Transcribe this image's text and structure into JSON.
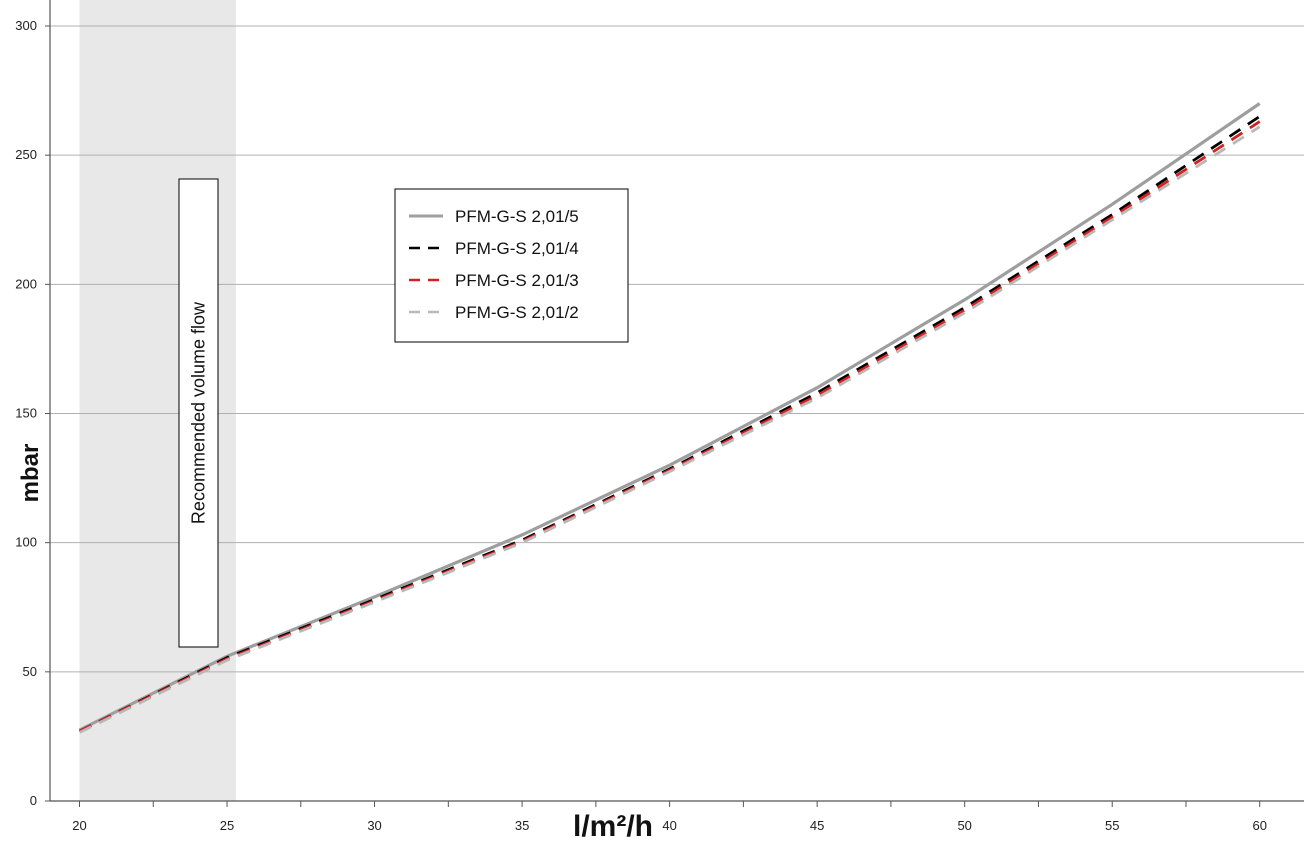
{
  "chart_data": {
    "type": "line",
    "xlabel": "l/m²/h",
    "ylabel": "mbar",
    "xlim": [
      19,
      61.5
    ],
    "ylim": [
      0,
      300
    ],
    "x_ticks": [
      20,
      25,
      30,
      35,
      40,
      45,
      50,
      55,
      60
    ],
    "x_tick_labels": [
      "20",
      "25",
      "30",
      "35",
      "40",
      "45",
      "50",
      "55",
      "60"
    ],
    "y_ticks": [
      0,
      50,
      100,
      150,
      200,
      250,
      300
    ],
    "y_tick_labels": [
      "0",
      "50",
      "100",
      "150",
      "200",
      "250",
      "300"
    ],
    "grid": "horizontal",
    "legend_position": "top-center",
    "recommended_band": {
      "label": "Recommended volume flow",
      "x_range": [
        20,
        25.3
      ]
    },
    "series": [
      {
        "name": "PFM-G-S 2,01/5",
        "color": "#9e9e9e",
        "style": "solid",
        "x": [
          20,
          25,
          30,
          35,
          40,
          45,
          50,
          55,
          60
        ],
        "y": [
          27.5,
          56,
          79,
          103,
          130,
          160,
          194,
          231,
          270
        ]
      },
      {
        "name": "PFM-G-S 2,01/4",
        "color": "#000000",
        "style": "dashed",
        "x": [
          20,
          25,
          30,
          35,
          40,
          45,
          50,
          55,
          60
        ],
        "y": [
          27,
          55.5,
          78,
          101,
          128.5,
          158,
          191,
          227,
          265
        ]
      },
      {
        "name": "PFM-G-S 2,01/3",
        "color": "#d42020",
        "style": "dashed",
        "x": [
          20,
          25,
          30,
          35,
          40,
          45,
          50,
          55,
          60
        ],
        "y": [
          27,
          55,
          77.5,
          100.5,
          128,
          157,
          190,
          226,
          263
        ]
      },
      {
        "name": "PFM-G-S 2,01/2",
        "color": "#b8b8b8",
        "style": "dashed",
        "x": [
          20,
          25,
          30,
          35,
          40,
          45,
          50,
          55,
          60
        ],
        "y": [
          26.5,
          54.5,
          77,
          100,
          127.5,
          156,
          189,
          225,
          261
        ]
      }
    ]
  }
}
